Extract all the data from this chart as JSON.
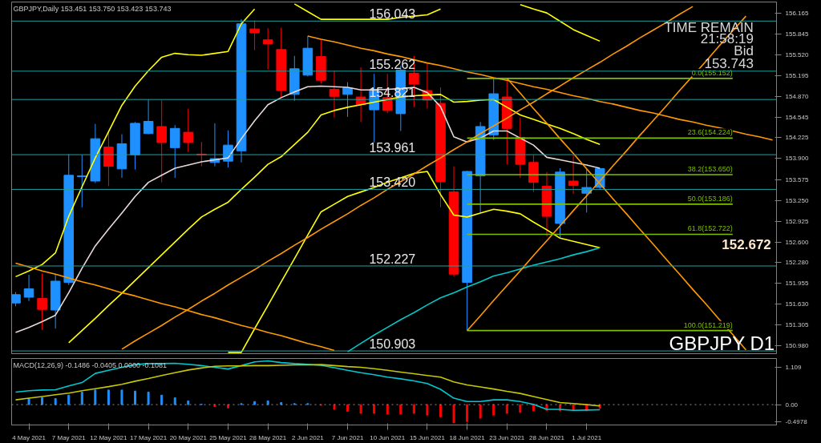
{
  "chart_data": [
    {
      "type": "candlestick",
      "title": "GBPJPY,Daily  153.451 153.750 153.423 153.743",
      "categories": [
        null,
        null,
        null,
        null,
        null,
        null,
        null,
        null,
        null,
        null,
        null,
        null,
        null,
        null,
        null,
        null,
        null,
        null,
        null,
        null,
        null,
        null,
        null,
        null,
        null,
        null,
        null,
        null,
        null,
        null,
        null,
        null,
        null,
        null,
        null,
        null,
        null,
        null,
        null,
        null,
        null,
        null,
        null,
        null,
        null,
        null,
        null,
        null,
        null,
        null,
        null,
        null,
        null,
        null,
        null,
        null,
        null,
        null
      ],
      "ohlc": [
        [
          151.65,
          151.82,
          151.6,
          151.78
        ],
        [
          151.74,
          152.09,
          151.68,
          151.87
        ],
        [
          151.72,
          152.11,
          151.23,
          151.55
        ],
        [
          151.54,
          152.09,
          151.25,
          151.99
        ],
        [
          151.97,
          153.97,
          151.93,
          153.64
        ],
        [
          153.62,
          153.96,
          153.14,
          153.63
        ],
        [
          153.55,
          154.44,
          153.52,
          154.21
        ],
        [
          154.08,
          154.33,
          153.47,
          153.78
        ],
        [
          153.74,
          154.28,
          153.6,
          154.13
        ],
        [
          153.96,
          154.47,
          153.73,
          154.45
        ],
        [
          154.29,
          154.82,
          154.28,
          154.48
        ],
        [
          154.4,
          154.81,
          153.53,
          154.15
        ],
        [
          154.07,
          154.42,
          153.6,
          154.37
        ],
        [
          154.31,
          154.68,
          154.0,
          154.15
        ],
        [
          153.97,
          154.16,
          153.78,
          153.96
        ],
        [
          153.84,
          154.45,
          153.78,
          153.9
        ],
        [
          153.86,
          154.34,
          153.76,
          154.11
        ],
        [
          154.02,
          156.07,
          153.84,
          156.0
        ],
        [
          155.92,
          156.05,
          155.59,
          155.86
        ],
        [
          155.75,
          155.93,
          155.29,
          155.69
        ],
        [
          155.6,
          155.94,
          154.86,
          154.96
        ],
        [
          154.9,
          155.5,
          154.8,
          155.3
        ],
        [
          155.2,
          155.81,
          155.18,
          155.62
        ],
        [
          155.49,
          155.75,
          155.07,
          155.12
        ],
        [
          154.98,
          155.27,
          154.54,
          154.87
        ],
        [
          154.9,
          155.09,
          154.55,
          155.0
        ],
        [
          154.86,
          155.32,
          154.47,
          154.74
        ],
        [
          154.66,
          155.22,
          154.15,
          154.98
        ],
        [
          154.85,
          155.22,
          154.61,
          154.65
        ],
        [
          154.6,
          155.35,
          154.33,
          155.28
        ],
        [
          155.23,
          155.5,
          154.7,
          155.06
        ],
        [
          154.96,
          155.38,
          154.68,
          154.81
        ],
        [
          154.76,
          155.01,
          153.14,
          153.54
        ],
        [
          153.38,
          153.78,
          152.06,
          152.1
        ],
        [
          151.97,
          153.71,
          151.22,
          153.7
        ],
        [
          153.63,
          154.47,
          153.06,
          154.4
        ],
        [
          154.27,
          155.15,
          154.19,
          154.91
        ],
        [
          154.86,
          155.14,
          153.81,
          154.37
        ],
        [
          154.23,
          154.54,
          153.6,
          153.81
        ],
        [
          153.84,
          153.96,
          153.38,
          153.53
        ],
        [
          153.47,
          153.69,
          152.69,
          153.0
        ],
        [
          152.89,
          153.75,
          152.67,
          153.69
        ],
        [
          153.55,
          153.95,
          153.35,
          153.48
        ],
        [
          153.36,
          153.73,
          153.06,
          153.45
        ],
        [
          153.451,
          153.75,
          153.423,
          153.743
        ],
        null,
        null,
        null,
        null,
        null,
        null,
        null,
        null,
        null,
        null,
        null,
        null,
        null
      ],
      "colors": [
        "#1e90ff",
        "#1e90ff",
        "#ff0000",
        "#1e90ff",
        "#1e90ff",
        "#1e90ff",
        "#1e90ff",
        "#ff0000",
        "#1e90ff",
        "#1e90ff",
        "#1e90ff",
        "#ff0000",
        "#1e90ff",
        "#ff0000",
        "#ff0000",
        "#1e90ff",
        "#1e90ff",
        "#1e90ff",
        "#ff0000",
        "#ff0000",
        "#ff0000",
        "#1e90ff",
        "#1e90ff",
        "#ff0000",
        "#ff0000",
        "#1e90ff",
        "#ff0000",
        "#1e90ff",
        "#ff0000",
        "#1e90ff",
        "#ff0000",
        "#ff0000",
        "#ff0000",
        "#ff0000",
        "#1e90ff",
        "#1e90ff",
        "#1e90ff",
        "#ff0000",
        "#ff0000",
        "#ff0000",
        "#ff0000",
        "#1e90ff",
        "#ff0000",
        "#1e90ff",
        "#1e90ff",
        null,
        null,
        null,
        null,
        null,
        null,
        null,
        null,
        null,
        null,
        null,
        null,
        null
      ],
      "series": [
        {
          "type": "line",
          "color": "#e8d8d8",
          "values": [
            151.19,
            151.27,
            151.36,
            151.46,
            151.81,
            152.19,
            152.54,
            152.8,
            153.05,
            153.31,
            153.53,
            153.64,
            153.75,
            153.8,
            153.85,
            153.88,
            153.91,
            154.21,
            154.49,
            154.74,
            154.85,
            154.94,
            155.02,
            155.03,
            155.02,
            155.01,
            154.97,
            154.97,
            154.98,
            154.99,
            155.01,
            154.93,
            154.71,
            154.24,
            154.16,
            154.22,
            154.33,
            154.33,
            154.22,
            154.11,
            153.92,
            153.88,
            153.84,
            153.8,
            153.75,
            null,
            null,
            null,
            null,
            null,
            null,
            null,
            null,
            null,
            null,
            null,
            null,
            null
          ]
        },
        {
          "type": "line",
          "color": "#ffff00",
          "values": [
            null,
            null,
            null,
            null,
            151.03,
            151.22,
            151.41,
            151.61,
            151.8,
            152.0,
            152.2,
            152.4,
            152.6,
            152.8,
            152.99,
            153.11,
            153.22,
            153.42,
            153.61,
            153.81,
            153.93,
            154.12,
            154.31,
            154.58,
            154.65,
            154.7,
            154.74,
            154.78,
            154.82,
            154.86,
            154.88,
            154.89,
            154.9,
            154.78,
            154.79,
            154.81,
            154.82,
            154.7,
            154.58,
            154.51,
            154.44,
            154.37,
            154.29,
            154.2,
            154.12,
            null,
            null,
            null,
            null,
            null,
            null,
            null,
            null,
            null,
            null,
            null,
            null,
            null
          ]
        },
        {
          "type": "line",
          "color": "#ffff00",
          "values": [
            152.06,
            152.15,
            152.25,
            152.43,
            153.0,
            153.46,
            153.91,
            154.32,
            154.73,
            155.03,
            155.27,
            155.48,
            155.54,
            155.52,
            155.51,
            155.54,
            155.57,
            156.0,
            156.23,
            null,
            null,
            156.31,
            156.19,
            156.07,
            156.07,
            156.07,
            156.07,
            156.07,
            156.07,
            156.1,
            156.12,
            156.14,
            156.23,
            null,
            null,
            null,
            null,
            null,
            156.3,
            156.23,
            156.17,
            156.04,
            155.91,
            155.82,
            155.73,
            null,
            null,
            null,
            null,
            null,
            null,
            null,
            null,
            null,
            null,
            null,
            null,
            null
          ]
        },
        {
          "type": "line",
          "color": "#ffff00",
          "values": [
            null,
            null,
            null,
            null,
            null,
            null,
            null,
            null,
            null,
            null,
            null,
            null,
            null,
            null,
            null,
            null,
            150.88,
            150.88,
            151.25,
            151.61,
            151.98,
            152.34,
            152.71,
            153.07,
            153.19,
            153.31,
            153.38,
            153.45,
            153.53,
            153.6,
            153.67,
            153.7,
            153.34,
            153.02,
            152.99,
            153.05,
            153.11,
            153.08,
            153.04,
            152.91,
            152.79,
            152.66,
            152.61,
            152.56,
            152.51,
            null,
            null,
            null,
            null,
            null,
            null,
            null,
            null,
            null,
            null,
            null,
            null,
            null
          ]
        },
        {
          "type": "line",
          "color": "#00c8c8",
          "values": [
            null,
            null,
            null,
            null,
            null,
            null,
            null,
            null,
            null,
            null,
            null,
            null,
            null,
            null,
            null,
            null,
            null,
            null,
            null,
            null,
            null,
            null,
            null,
            null,
            null,
            150.89,
            151.02,
            151.15,
            151.27,
            151.39,
            151.5,
            151.62,
            151.73,
            151.81,
            151.9,
            151.98,
            152.07,
            152.12,
            152.18,
            152.24,
            152.29,
            152.34,
            152.4,
            152.45,
            152.51,
            null,
            null,
            null,
            null,
            null,
            null,
            null,
            null,
            null,
            null,
            null,
            null,
            null
          ]
        },
        {
          "type": "line",
          "color": "#ff9900",
          "values": [
            152.27,
            152.21,
            152.15,
            152.1,
            152.04,
            151.98,
            151.93,
            151.87,
            151.81,
            151.76,
            151.7,
            151.64,
            151.59,
            151.53,
            151.47,
            151.42,
            151.36,
            151.3,
            151.25,
            151.19,
            151.14,
            151.08,
            151.02,
            150.97,
            150.91,
            null,
            null,
            null,
            null,
            null,
            null,
            null,
            null,
            null,
            null,
            null,
            null,
            null,
            null,
            null,
            null,
            null,
            null,
            null,
            null,
            null,
            null,
            null,
            null,
            null,
            null,
            null,
            null,
            null,
            null,
            null,
            null,
            null
          ]
        },
        {
          "type": "line",
          "color": "#ff9900",
          "values": [
            null,
            null,
            null,
            null,
            null,
            null,
            null,
            null,
            150.93,
            151.06,
            151.18,
            151.3,
            151.43,
            151.55,
            151.68,
            151.8,
            151.93,
            152.05,
            152.17,
            152.3,
            152.42,
            152.55,
            152.67,
            152.8,
            152.92,
            153.04,
            153.17,
            153.29,
            153.42,
            153.54,
            153.66,
            153.79,
            153.91,
            154.04,
            154.16,
            154.29,
            154.41,
            154.53,
            154.66,
            154.78,
            154.91,
            155.03,
            155.16,
            155.28,
            155.4,
            155.53,
            155.65,
            155.78,
            155.9,
            156.02,
            156.15,
            156.27,
            null,
            null,
            null,
            null,
            null,
            null
          ]
        },
        {
          "type": "line",
          "color": "#ff9900",
          "values": [
            null,
            null,
            null,
            null,
            null,
            null,
            null,
            null,
            null,
            null,
            null,
            null,
            null,
            null,
            null,
            null,
            null,
            null,
            null,
            null,
            null,
            null,
            null,
            null,
            null,
            null,
            null,
            null,
            null,
            null,
            null,
            null,
            null,
            null,
            151.22,
            151.45,
            151.69,
            151.92,
            152.15,
            152.39,
            152.62,
            152.85,
            153.09,
            153.32,
            153.55,
            153.79,
            154.02,
            154.26,
            154.49,
            154.72,
            154.96,
            155.19,
            155.42,
            155.66,
            155.89,
            156.12,
            null,
            null
          ]
        },
        {
          "type": "line",
          "color": "#ff9900",
          "values": [
            null,
            null,
            null,
            null,
            null,
            null,
            null,
            null,
            null,
            null,
            null,
            null,
            null,
            null,
            null,
            null,
            null,
            null,
            null,
            null,
            null,
            null,
            155.81,
            155.76,
            155.72,
            155.67,
            155.62,
            155.58,
            155.53,
            155.49,
            155.44,
            155.39,
            155.35,
            155.3,
            155.25,
            155.21,
            155.16,
            155.12,
            155.07,
            155.02,
            154.98,
            154.93,
            154.88,
            154.84,
            154.79,
            154.75,
            154.7,
            154.65,
            154.61,
            154.56,
            154.51,
            154.47,
            154.42,
            154.38,
            154.33,
            154.28,
            154.24,
            154.19
          ]
        },
        {
          "type": "line",
          "color": "#ff9900",
          "values": [
            null,
            null,
            null,
            null,
            null,
            null,
            null,
            null,
            null,
            null,
            null,
            null,
            null,
            null,
            null,
            null,
            null,
            null,
            null,
            null,
            null,
            null,
            null,
            null,
            null,
            null,
            null,
            null,
            null,
            null,
            null,
            null,
            null,
            null,
            null,
            null,
            null,
            155.15,
            154.92,
            154.68,
            154.45,
            154.21,
            153.98,
            153.74,
            153.51,
            153.27,
            153.04,
            152.8,
            152.57,
            152.33,
            152.1,
            151.86,
            151.63,
            151.39,
            151.16,
            150.92,
            null,
            null
          ]
        },
        {
          "type": "line",
          "color": "#7fbf00",
          "name": "0.0(155.152)",
          "values": [
            null,
            null,
            null,
            null,
            null,
            null,
            null,
            null,
            null,
            null,
            null,
            null,
            null,
            null,
            null,
            null,
            null,
            null,
            null,
            null,
            null,
            null,
            null,
            null,
            null,
            null,
            null,
            null,
            null,
            null,
            null,
            null,
            null,
            null,
            155.15,
            155.15,
            155.15,
            155.15,
            155.15,
            155.15,
            155.15,
            155.15,
            155.15,
            155.15,
            155.15,
            155.15,
            155.15,
            155.15,
            155.15,
            155.15,
            155.15,
            155.15,
            155.15,
            155.15,
            155.15,
            null,
            null,
            null
          ]
        },
        {
          "type": "line",
          "color": "#7fbf00",
          "name": "23.6(154.224)",
          "values": [
            null,
            null,
            null,
            null,
            null,
            null,
            null,
            null,
            null,
            null,
            null,
            null,
            null,
            null,
            null,
            null,
            null,
            null,
            null,
            null,
            null,
            null,
            null,
            null,
            null,
            null,
            null,
            null,
            null,
            null,
            null,
            null,
            null,
            null,
            154.22,
            154.22,
            154.22,
            154.22,
            154.22,
            154.22,
            154.22,
            154.22,
            154.22,
            154.22,
            154.22,
            154.22,
            154.22,
            154.22,
            154.22,
            154.22,
            154.22,
            154.22,
            154.22,
            154.22,
            154.22,
            null,
            null,
            null
          ]
        },
        {
          "type": "line",
          "color": "#7fbf00",
          "name": "38.2(153.650)",
          "values": [
            null,
            null,
            null,
            null,
            null,
            null,
            null,
            null,
            null,
            null,
            null,
            null,
            null,
            null,
            null,
            null,
            null,
            null,
            null,
            null,
            null,
            null,
            null,
            null,
            null,
            null,
            null,
            null,
            null,
            null,
            null,
            null,
            null,
            null,
            153.65,
            153.65,
            153.65,
            153.65,
            153.65,
            153.65,
            153.65,
            153.65,
            153.65,
            153.65,
            153.65,
            153.65,
            153.65,
            153.65,
            153.65,
            153.65,
            153.65,
            153.65,
            153.65,
            153.65,
            153.65,
            null,
            null,
            null
          ]
        },
        {
          "type": "line",
          "color": "#7fbf00",
          "name": "50.0(153.186)",
          "values": [
            null,
            null,
            null,
            null,
            null,
            null,
            null,
            null,
            null,
            null,
            null,
            null,
            null,
            null,
            null,
            null,
            null,
            null,
            null,
            null,
            null,
            null,
            null,
            null,
            null,
            null,
            null,
            null,
            null,
            null,
            null,
            null,
            null,
            null,
            153.19,
            153.19,
            153.19,
            153.19,
            153.19,
            153.19,
            153.19,
            153.19,
            153.19,
            153.19,
            153.19,
            153.19,
            153.19,
            153.19,
            153.19,
            153.19,
            153.19,
            153.19,
            153.19,
            153.19,
            153.19,
            null,
            null,
            null
          ]
        },
        {
          "type": "line",
          "color": "#7fbf00",
          "name": "61.8(152.722)",
          "values": [
            null,
            null,
            null,
            null,
            null,
            null,
            null,
            null,
            null,
            null,
            null,
            null,
            null,
            null,
            null,
            null,
            null,
            null,
            null,
            null,
            null,
            null,
            null,
            null,
            null,
            null,
            null,
            null,
            null,
            null,
            null,
            null,
            null,
            null,
            152.72,
            152.72,
            152.72,
            152.72,
            152.72,
            152.72,
            152.72,
            152.72,
            152.72,
            152.72,
            152.72,
            152.72,
            152.72,
            152.72,
            152.72,
            152.72,
            152.72,
            152.72,
            152.72,
            152.72,
            152.72,
            null,
            null,
            null
          ]
        },
        {
          "type": "line",
          "color": "#7fbf00",
          "name": "100.0(151.219)",
          "values": [
            null,
            null,
            null,
            null,
            null,
            null,
            null,
            null,
            null,
            null,
            null,
            null,
            null,
            null,
            null,
            null,
            null,
            null,
            null,
            null,
            null,
            null,
            null,
            null,
            null,
            null,
            null,
            null,
            null,
            null,
            null,
            null,
            null,
            null,
            151.22,
            151.22,
            151.22,
            151.22,
            151.22,
            151.22,
            151.22,
            151.22,
            151.22,
            151.22,
            151.22,
            151.22,
            151.22,
            151.22,
            151.22,
            151.22,
            151.22,
            151.22,
            151.22,
            151.22,
            151.22,
            null,
            null,
            null
          ]
        }
      ],
      "ref_lines": [
        {
          "axis": "y",
          "value": 156.043,
          "label": "156.043",
          "color": "#1fa0a0"
        },
        {
          "axis": "y",
          "value": 155.262,
          "label": "155.262",
          "color": "#1fa0a0"
        },
        {
          "axis": "y",
          "value": 154.821,
          "label": "154.821",
          "color": "#1fa0a0"
        },
        {
          "axis": "y",
          "value": 153.961,
          "label": "153.961",
          "color": "#1fa0a0"
        },
        {
          "axis": "y",
          "value": 153.42,
          "label": "153.420",
          "color": "#1fa0a0"
        },
        {
          "axis": "y",
          "value": 152.227,
          "label": "152.227",
          "color": "#1fa0a0"
        },
        {
          "axis": "y",
          "value": 150.903,
          "label": "150.903",
          "color": "#1fa0a0"
        }
      ],
      "annotations": [
        "TIME REMAIN",
        "21:58:19",
        "Bid",
        "153.743",
        "152.672",
        "GBPJPY D1"
      ],
      "ylim": [
        150.86,
        156.34
      ],
      "yticks": [
        156.165,
        155.845,
        {
          "value": 155.52,
          "label": "155.520"
        },
        155.195,
        {
          "value": 154.87,
          "label": "154.870"
        },
        154.545,
        154.225,
        {
          "value": 153.9,
          "label": "153.900"
        },
        153.575,
        {
          "value": 153.25,
          "label": "153.250"
        },
        152.925,
        {
          "value": 152.6,
          "label": "152.600"
        },
        {
          "value": 152.28,
          "label": "152.280"
        },
        151.955,
        {
          "value": 151.63,
          "label": "151.630"
        },
        151.305,
        {
          "value": 150.98,
          "label": "150.980"
        }
      ],
      "tick_labels": "y"
    },
    {
      "type": "bar",
      "title": "MACD(12,26,9) -0.1486 -0.0405 0.0000 -0.1081",
      "categories": [
        null,
        "4 May 2021",
        null,
        null,
        "7 May 2021",
        null,
        null,
        "12 May 2021",
        null,
        null,
        "17 May 2021",
        null,
        null,
        "20 May 2021",
        null,
        null,
        "25 May 2021",
        null,
        null,
        "28 May 2021",
        null,
        null,
        "2 Jun 2021",
        null,
        null,
        "7 Jun 2021",
        null,
        null,
        "10 Jun 2021",
        null,
        null,
        "15 Jun 2021",
        null,
        null,
        "18 Jun 2021",
        null,
        null,
        "23 Jun 2021",
        null,
        null,
        "28 Jun 2021",
        null,
        null,
        "1 Jul 2021",
        null,
        null,
        null,
        null,
        null,
        null,
        null,
        null,
        null,
        null,
        null,
        null,
        null,
        null
      ],
      "values": [
        null,
        0.18,
        0.21,
        0.18,
        0.28,
        0.37,
        0.43,
        0.43,
        0.43,
        0.4,
        0.37,
        0.28,
        0.2,
        0.11,
        0.01,
        -0.06,
        -0.1,
        0.03,
        0.09,
        0.11,
        0.06,
        0.03,
        0.03,
        -0.02,
        -0.14,
        -0.2,
        -0.26,
        -0.26,
        -0.28,
        -0.28,
        -0.26,
        -0.31,
        -0.36,
        -0.54,
        -0.5,
        -0.4,
        -0.31,
        -0.26,
        -0.23,
        -0.18,
        -0.17,
        -0.18,
        -0.17,
        -0.18,
        -0.11,
        null,
        null,
        null,
        null,
        null,
        null,
        null,
        null,
        null,
        null,
        null,
        null,
        null
      ],
      "colors": [
        null,
        "#1e90ff",
        "#1e90ff",
        "#1e90ff",
        "#1e90ff",
        "#1e90ff",
        "#1e90ff",
        "#1e90ff",
        "#1e90ff",
        "#1e90ff",
        "#1e90ff",
        "#1e90ff",
        "#1e90ff",
        "#1e90ff",
        "#1e90ff",
        "#ff0000",
        "#ff0000",
        "#1e90ff",
        "#1e90ff",
        "#1e90ff",
        "#1e90ff",
        "#1e90ff",
        "#1e90ff",
        "#ff0000",
        "#ff0000",
        "#ff0000",
        "#ff0000",
        "#ff0000",
        "#ff0000",
        "#ff0000",
        "#ff0000",
        "#ff0000",
        "#ff0000",
        "#ff0000",
        "#ff0000",
        "#ff0000",
        "#ff0000",
        "#ff0000",
        "#ff0000",
        "#ff0000",
        "#ff0000",
        "#ff0000",
        "#ff0000",
        "#ff0000",
        "#ff0000",
        null,
        null,
        null,
        null,
        null,
        null,
        null,
        null,
        null,
        null,
        null,
        null,
        null
      ],
      "series": [
        {
          "type": "line",
          "color": "#00c8d0",
          "values": [
            0.37,
            0.41,
            0.43,
            0.44,
            0.55,
            0.65,
            0.92,
            1.01,
            1.1,
            1.18,
            1.21,
            1.21,
            1.22,
            1.19,
            1.15,
            1.1,
            1.05,
            1.15,
            1.26,
            1.29,
            1.24,
            1.21,
            1.19,
            1.16,
            1.09,
            1.01,
            0.94,
            0.88,
            0.81,
            0.76,
            0.7,
            0.62,
            0.45,
            0.19,
            0.09,
            0.09,
            0.14,
            0.14,
            0.09,
            0.01,
            -0.14,
            -0.14,
            -0.17,
            -0.16,
            -0.15,
            null,
            null,
            null,
            null,
            null,
            null,
            null,
            null,
            null,
            null,
            null,
            null,
            null
          ]
        },
        {
          "type": "line",
          "color": "#c8c800",
          "values": [
            0.14,
            0.19,
            0.24,
            0.29,
            0.34,
            0.41,
            0.47,
            0.53,
            0.6,
            0.69,
            0.77,
            0.86,
            0.94,
            1.02,
            1.08,
            1.13,
            1.14,
            1.14,
            1.15,
            1.15,
            1.16,
            1.17,
            1.17,
            1.18,
            1.15,
            1.12,
            1.1,
            1.06,
            1.01,
            0.96,
            0.91,
            0.86,
            0.81,
            0.67,
            0.58,
            0.52,
            0.46,
            0.39,
            0.33,
            0.24,
            0.15,
            0.06,
            0.03,
            0.0,
            -0.04,
            null,
            null,
            null,
            null,
            null,
            null,
            null,
            null,
            null,
            null,
            null,
            null,
            null
          ]
        }
      ],
      "ref_lines": [
        {
          "axis": "y",
          "value": 0,
          "color": "#909090",
          "line_style": "dotted"
        }
      ],
      "ylim": [
        -0.6,
        1.36
      ],
      "yticks": [
        1.109,
        {
          "value": 0,
          "label": "0.00"
        },
        -0.4978
      ]
    }
  ]
}
